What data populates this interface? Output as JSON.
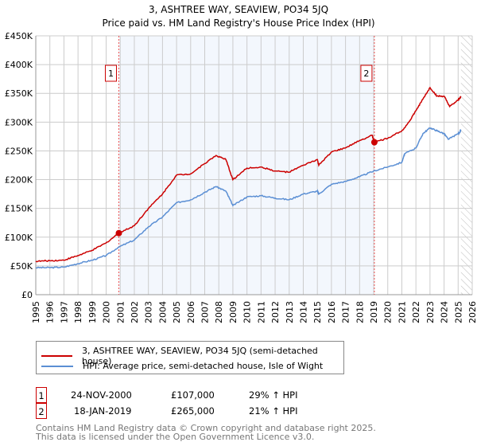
{
  "chart_data": {
    "type": "line",
    "title": "3, ASHTREE WAY, SEAVIEW, PO34 5JQ",
    "subtitle": "Price paid vs. HM Land Registry's House Price Index (HPI)",
    "xlim": [
      1995,
      2026
    ],
    "ylim": [
      0,
      450000
    ],
    "x_ticks": [
      "1995",
      "1996",
      "1997",
      "1998",
      "1999",
      "2000",
      "2001",
      "2002",
      "2003",
      "2004",
      "2005",
      "2006",
      "2007",
      "2008",
      "2009",
      "2010",
      "2011",
      "2012",
      "2013",
      "2014",
      "2015",
      "2016",
      "2017",
      "2018",
      "2019",
      "2020",
      "2021",
      "2022",
      "2023",
      "2024",
      "2025",
      "2026"
    ],
    "y_ticks": [
      {
        "v": 0,
        "label": "£0"
      },
      {
        "v": 50000,
        "label": "£50K"
      },
      {
        "v": 100000,
        "label": "£100K"
      },
      {
        "v": 150000,
        "label": "£150K"
      },
      {
        "v": 200000,
        "label": "£200K"
      },
      {
        "v": 250000,
        "label": "£250K"
      },
      {
        "v": 300000,
        "label": "£300K"
      },
      {
        "v": 350000,
        "label": "£350K"
      },
      {
        "v": 400000,
        "label": "£400K"
      },
      {
        "v": 450000,
        "label": "£450K"
      }
    ],
    "grid": true,
    "shaded_range": [
      2000.9,
      2019.05
    ],
    "hatched_from": 2025.2,
    "series": [
      {
        "name": "3, ASHTREE WAY, SEAVIEW, PO34 5JQ (semi-detached house)",
        "color": "#cc0000",
        "x": [
          1995,
          1996,
          1997,
          1998,
          1999,
          2000,
          2000.9,
          2002,
          2003,
          2004,
          2005,
          2006,
          2007,
          2007.8,
          2008.5,
          2009,
          2010,
          2011,
          2012,
          2013,
          2014,
          2015,
          2015.1,
          2016,
          2017,
          2018,
          2018.9,
          2019.05,
          2020,
          2021,
          2021.5,
          2022,
          2022.5,
          2023,
          2023.5,
          2024,
          2024.4,
          2025,
          2025.2
        ],
        "y": [
          58000,
          59000,
          60000,
          68000,
          77000,
          90000,
          107000,
          120000,
          150000,
          175000,
          208000,
          210000,
          228000,
          242000,
          235000,
          200000,
          220000,
          222000,
          215000,
          213000,
          225000,
          235000,
          225000,
          248000,
          255000,
          268000,
          277000,
          265000,
          272000,
          285000,
          300000,
          320000,
          340000,
          360000,
          345000,
          345000,
          327000,
          338000,
          345000
        ]
      },
      {
        "name": "HPI: Average price, semi-detached house, Isle of Wight",
        "color": "#5b8fd4",
        "x": [
          1995,
          1996,
          1997,
          1998,
          1999,
          2000,
          2000.9,
          2002,
          2003,
          2004,
          2005,
          2006,
          2007,
          2007.8,
          2008.5,
          2009,
          2010,
          2011,
          2012,
          2013,
          2014,
          2015,
          2015.1,
          2016,
          2017,
          2018,
          2019,
          2020,
          2021,
          2021.2,
          2022,
          2022.5,
          2023,
          2023.5,
          2024,
          2024.3,
          2025,
          2025.2
        ],
        "y": [
          47000,
          47000,
          48000,
          54000,
          60000,
          68000,
          83000,
          95000,
          118000,
          135000,
          160000,
          165000,
          178000,
          188000,
          180000,
          155000,
          170000,
          172000,
          168000,
          165000,
          175000,
          180000,
          175000,
          192000,
          197000,
          205000,
          215000,
          222000,
          230000,
          245000,
          255000,
          280000,
          290000,
          285000,
          280000,
          270000,
          280000,
          285000
        ]
      }
    ],
    "sales": [
      {
        "id": "1",
        "x": 2000.9,
        "price": 107000,
        "date": "24-NOV-2000",
        "price_label": "£107,000",
        "hpi": "29% ↑ HPI"
      },
      {
        "id": "2",
        "x": 2019.05,
        "price": 265000,
        "date": "18-JAN-2019",
        "price_label": "£265,000",
        "hpi": "21% ↑ HPI"
      }
    ],
    "legend_position": "below"
  },
  "footer": {
    "line1": "Contains HM Land Registry data © Crown copyright and database right 2025.",
    "line2": "This data is licensed under the Open Government Licence v3.0."
  }
}
